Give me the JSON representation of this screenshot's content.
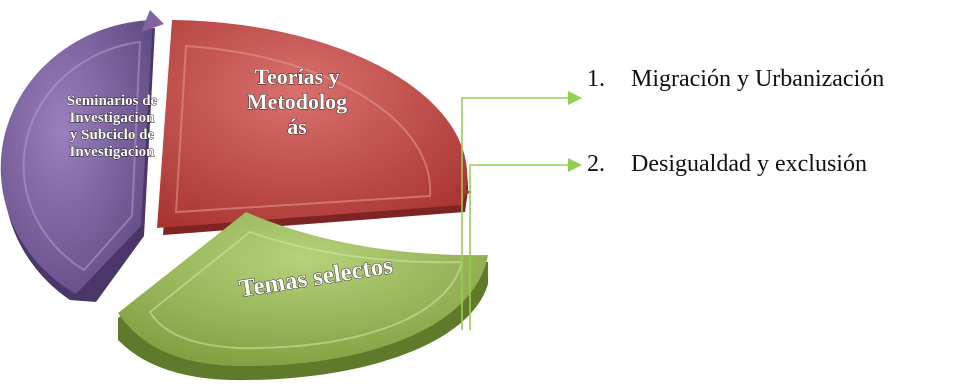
{
  "segments": [
    {
      "id": "teorias",
      "lines": [
        "Teorías y",
        "Metodolog",
        "ás"
      ],
      "color": "#c0504d"
    },
    {
      "id": "seminarios",
      "lines": [
        "Seminarios de",
        "Investigacion",
        "y Subciclo de",
        "Investigacion"
      ],
      "color": "#8064a2"
    },
    {
      "id": "temas",
      "lines": [
        "Temas selectos"
      ],
      "color": "#9bbb59"
    }
  ],
  "connector_color": "#92d050",
  "list": {
    "items": [
      {
        "number": "1.",
        "label": "Migración y Urbanización"
      },
      {
        "number": "2.",
        "label": "Desigualdad y exclusión"
      }
    ]
  }
}
